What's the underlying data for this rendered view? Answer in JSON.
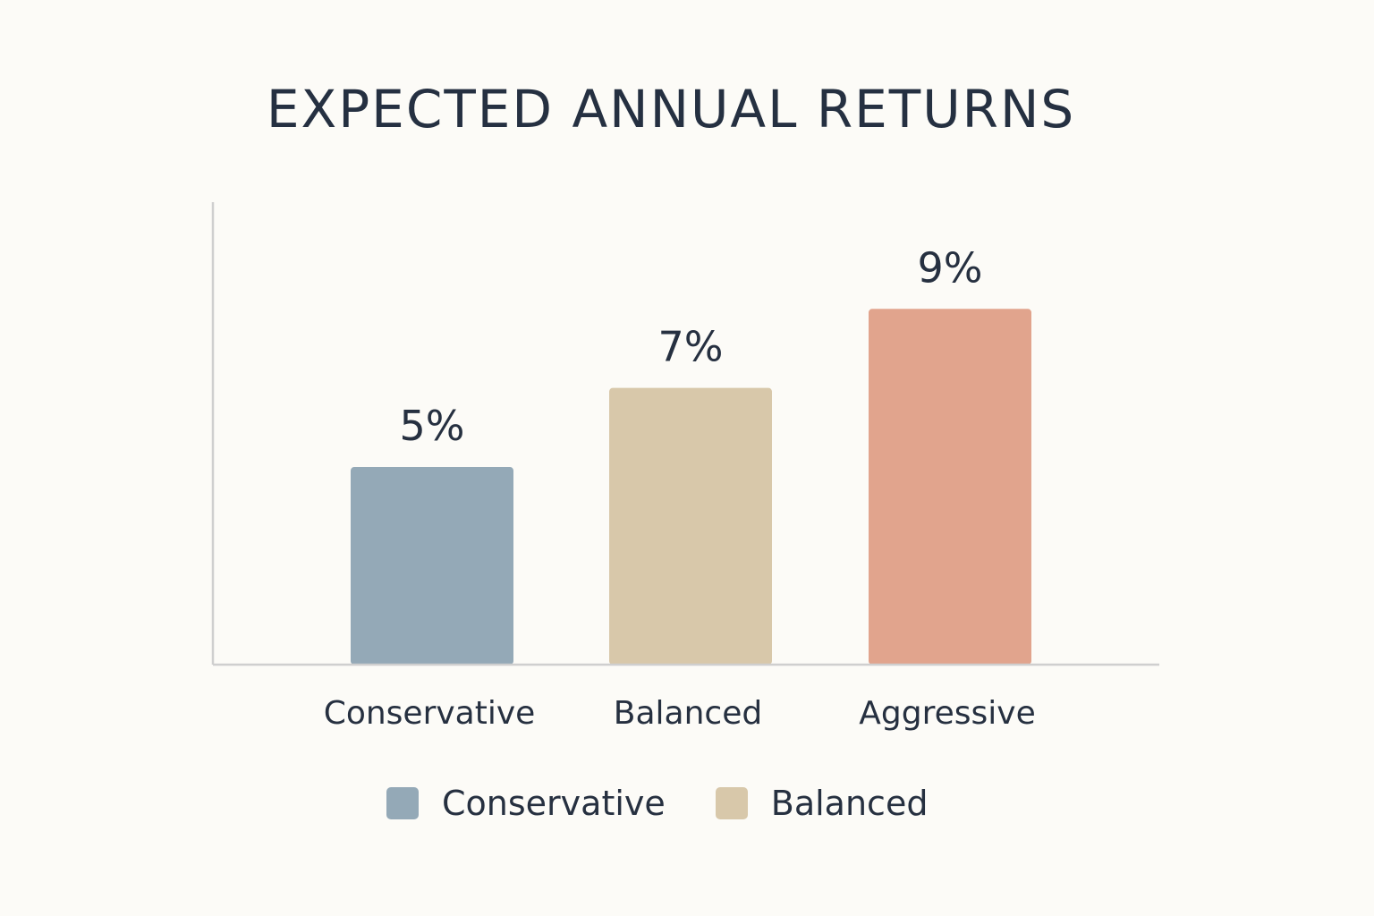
{
  "chart_data": {
    "type": "bar",
    "title": "EXPECTED ANNUAL RETURNS",
    "categories": [
      "Conservative",
      "Balanced",
      "Aggressive"
    ],
    "values": [
      5,
      7,
      9
    ],
    "value_labels": [
      "5%",
      "7%",
      "9%"
    ],
    "unit": "%",
    "colors": [
      "#94a9b7",
      "#d8c8aa",
      "#e1a48d"
    ],
    "axis_color": "#cfcfcf",
    "ylim": [
      0,
      11.7
    ],
    "grid": false,
    "legend": {
      "placement": "bottom-center",
      "entries": [
        {
          "label": "Conservative",
          "color": "#94a9b7"
        },
        {
          "label": "Balanced",
          "color": "#d8c8aa"
        }
      ]
    }
  }
}
